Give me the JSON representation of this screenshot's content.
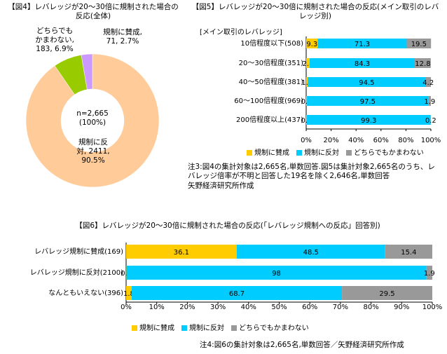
{
  "chart_data": [
    {
      "type": "pie",
      "title": "【図4】レバレッジが20～30倍に規制された場合の反応(全体)",
      "center_label": "n=2,665 (100%)",
      "values": [
        90.5,
        6.9,
        2.7
      ],
      "value_labels": [
        "規制に反対, 2411, 90.5%",
        "どちらでもかまわない, 183, 6.9%",
        "規制に賛成, 71, 2.7%"
      ],
      "colors": [
        "#ffcc99",
        "#99cc00",
        "#cc99ff"
      ]
    },
    {
      "type": "stacked_barh",
      "title": "【図5】レバレッジが20～30倍に規制された場合の反応(メイン取引のレバレッジ別)",
      "y_label": "[メイン取引のレバレッジ]",
      "categories": [
        "10倍程度以下(508)",
        "20～30倍程度(351)",
        "40～50倍程度(381)",
        "60～100倍程度(969)",
        "200倍程度以上(437)"
      ],
      "series": [
        {
          "name": "規制に賛成",
          "color": "#ffcc00",
          "values": [
            9.3,
            2.8,
            1.3,
            0.6,
            0.5
          ]
        },
        {
          "name": "規制に反対",
          "color": "#00ccff",
          "values": [
            71.3,
            84.3,
            94.5,
            97.5,
            99.3
          ]
        },
        {
          "name": "どちらでもかまわない",
          "color": "#999999",
          "values": [
            19.5,
            12.8,
            4.2,
            1.9,
            0.2
          ]
        }
      ],
      "xlim": [
        0,
        100
      ],
      "xticks": [
        {
          "value": 0,
          "label": "0%"
        },
        {
          "value": 20,
          "label": "20%"
        },
        {
          "value": 40,
          "label": "40%"
        },
        {
          "value": 60,
          "label": "60%"
        },
        {
          "value": 80,
          "label": "80%"
        },
        {
          "value": 100,
          "label": "100%"
        }
      ],
      "notes": [
        "注3:図4の集計対象は2,665名,単数回答.図5は集計対象2,665名のうち、レバレッジ倍率が不明と回答した19名を除く2,646名,単数回答",
        "矢野経済研究所作成"
      ]
    },
    {
      "type": "stacked_barh",
      "title": "【図6】レバレッジが20～30倍に規制された場合の反応(「レバレッジ規制への反応」回答別)",
      "categories": [
        "レバレッジ規制に賛成(169)",
        "レバレッジ規制に反対(2100)",
        "なんともいえない(396)"
      ],
      "series": [
        {
          "name": "規制に賛成",
          "color": "#ffcc00",
          "values": [
            36.1,
            0.1,
            1.8
          ]
        },
        {
          "name": "規制に反対",
          "color": "#00ccff",
          "values": [
            48.5,
            98,
            68.7
          ]
        },
        {
          "name": "どちらでもかまわない",
          "color": "#999999",
          "values": [
            15.4,
            1.9,
            29.5
          ]
        }
      ],
      "xlim": [
        0,
        100
      ],
      "xticks": [
        {
          "value": 0,
          "label": "0%"
        },
        {
          "value": 10,
          "label": "10%"
        },
        {
          "value": 20,
          "label": "20%"
        },
        {
          "value": 30,
          "label": "30%"
        },
        {
          "value": 40,
          "label": "40%"
        },
        {
          "value": 50,
          "label": "50%"
        },
        {
          "value": 60,
          "label": "60%"
        },
        {
          "value": 70,
          "label": "70%"
        },
        {
          "value": 80,
          "label": "80%"
        },
        {
          "value": 90,
          "label": "90%"
        },
        {
          "value": 100,
          "label": "100%"
        }
      ],
      "notes": [
        "注4:図6の集計対象は2,665名,単数回答／矢野経済研究所作成"
      ]
    }
  ]
}
